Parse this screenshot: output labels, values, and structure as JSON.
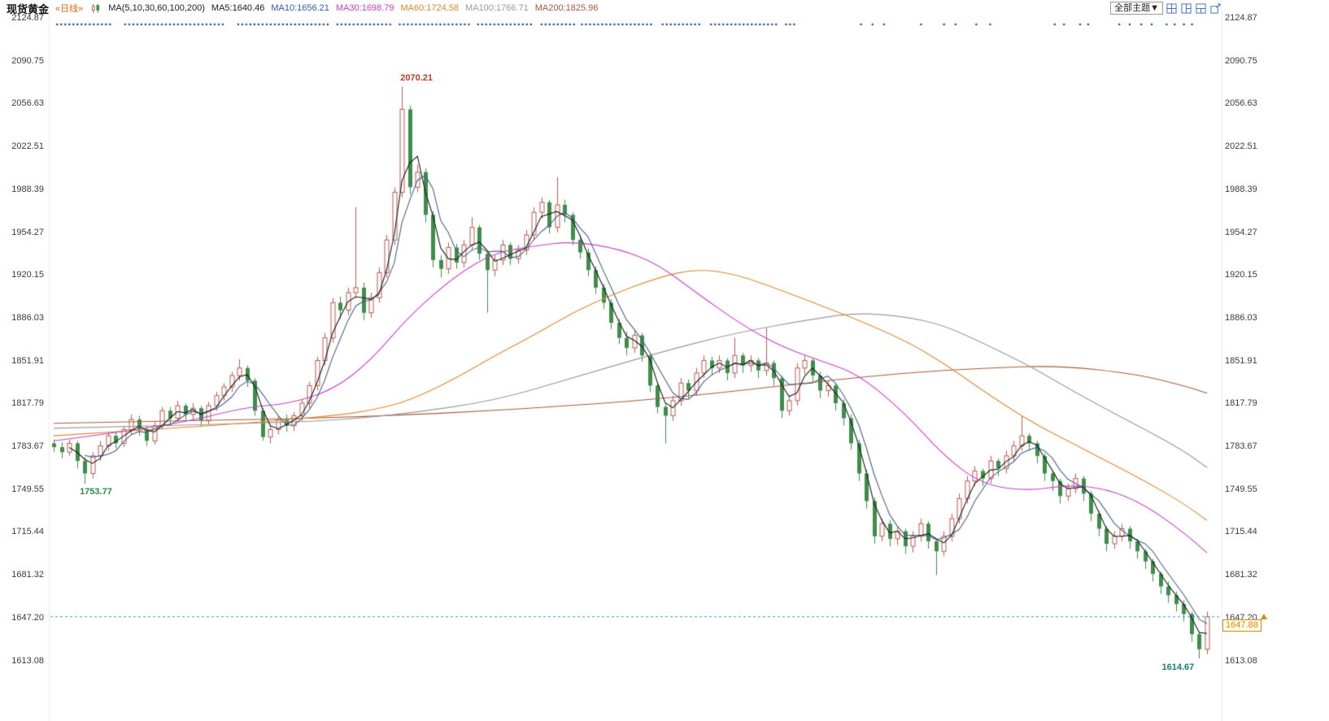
{
  "header": {
    "symbol": "现货黄金",
    "period": "«日线»",
    "ma_group_label": "MA(5,10,30,60,100,200)",
    "ma_readouts": [
      {
        "label": "MA5:1640.46",
        "color": "#1a1a1a"
      },
      {
        "label": "MA10:1656.21",
        "color": "#2f5db3"
      },
      {
        "label": "MA30:1698.79",
        "color": "#cc3ecc"
      },
      {
        "label": "MA60:1724.58",
        "color": "#e0892f"
      },
      {
        "label": "MA100:1766.71",
        "color": "#9a9a9a"
      },
      {
        "label": "MA200:1825.96",
        "color": "#a85a3c"
      }
    ]
  },
  "toolbar": {
    "theme_button": "全部主题▼",
    "icons": [
      "multi-chart-grid",
      "split-columns",
      "split-rows",
      "popout-window"
    ]
  },
  "axis": {
    "ticks": [
      "2124.87",
      "2090.75",
      "2056.63",
      "2022.51",
      "1988.39",
      "1954.27",
      "1920.15",
      "1886.03",
      "1851.91",
      "1817.79",
      "1783.67",
      "1749.55",
      "1715.44",
      "1681.32",
      "1647.20",
      "1613.08"
    ],
    "tick_values": [
      2124.87,
      2090.75,
      2056.63,
      2022.51,
      1988.39,
      1954.27,
      1920.15,
      1886.03,
      1851.91,
      1817.79,
      1783.67,
      1749.55,
      1715.44,
      1681.32,
      1647.2,
      1613.08
    ]
  },
  "price_line": {
    "value": 1647.88,
    "label": "1647.88",
    "color": "#2b9bd7",
    "badge_color": "#e08a00"
  },
  "annotations": [
    {
      "index": 45,
      "price": 2070.21,
      "text": "2070.21",
      "color": "#c0392b",
      "pos": "above-right"
    },
    {
      "index": 4,
      "price": 1753.77,
      "text": "1753.77",
      "color": "#2e8b40",
      "pos": "below-right"
    },
    {
      "index": 148,
      "price": 1614.67,
      "text": "1614.67",
      "color": "#1b7f78",
      "pos": "below-left"
    }
  ],
  "dot_markers": {
    "color": "#1e4f9e",
    "y": 30,
    "segments": [
      [
        0.003,
        0.052
      ],
      [
        0.062,
        0.15
      ],
      [
        0.16,
        0.238
      ],
      [
        0.246,
        0.292
      ],
      [
        0.3,
        0.36
      ],
      [
        0.368,
        0.415
      ],
      [
        0.423,
        0.452
      ],
      [
        0.458,
        0.52
      ],
      [
        0.528,
        0.562
      ],
      [
        0.57,
        0.628
      ],
      [
        0.635,
        0.644
      ]
    ],
    "points": [
      0.7,
      0.71,
      0.72,
      0.752,
      0.772,
      0.782,
      0.8,
      0.812,
      0.868,
      0.876,
      0.89,
      0.897,
      0.924,
      0.933,
      0.943,
      0.952,
      0.965,
      0.972,
      0.98,
      0.987
    ]
  },
  "chart_data": {
    "type": "candlestick",
    "title": "现货黄金 «日线»",
    "xlabel": "",
    "ylabel": "",
    "ylim": [
      1592,
      2139
    ],
    "grid": false,
    "up_color": "#bb5a50",
    "down_color": "#3e8e4a",
    "candles": [
      [
        1786,
        1789,
        1779,
        1783
      ],
      [
        1783,
        1787,
        1774,
        1779
      ],
      [
        1779,
        1789,
        1776,
        1786
      ],
      [
        1786,
        1788,
        1766,
        1772
      ],
      [
        1772,
        1775,
        1753.77,
        1762
      ],
      [
        1762,
        1779,
        1758,
        1776
      ],
      [
        1776,
        1788,
        1772,
        1784
      ],
      [
        1784,
        1795,
        1780,
        1792
      ],
      [
        1792,
        1795,
        1782,
        1786
      ],
      [
        1786,
        1800,
        1783,
        1797
      ],
      [
        1797,
        1809,
        1793,
        1805
      ],
      [
        1805,
        1808,
        1792,
        1797
      ],
      [
        1797,
        1800,
        1784,
        1788
      ],
      [
        1788,
        1803,
        1785,
        1800
      ],
      [
        1800,
        1815,
        1797,
        1812
      ],
      [
        1812,
        1815,
        1801,
        1806
      ],
      [
        1806,
        1820,
        1803,
        1816
      ],
      [
        1816,
        1818,
        1804,
        1809
      ],
      [
        1809,
        1818,
        1805,
        1814
      ],
      [
        1814,
        1816,
        1799,
        1804
      ],
      [
        1804,
        1819,
        1801,
        1816
      ],
      [
        1816,
        1827,
        1812,
        1824
      ],
      [
        1824,
        1834,
        1820,
        1831
      ],
      [
        1831,
        1843,
        1827,
        1840
      ],
      [
        1840,
        1853,
        1836,
        1846
      ],
      [
        1846,
        1848,
        1831,
        1836
      ],
      [
        1836,
        1838,
        1808,
        1812
      ],
      [
        1812,
        1814,
        1788,
        1791
      ],
      [
        1791,
        1800,
        1786,
        1797
      ],
      [
        1797,
        1808,
        1793,
        1805
      ],
      [
        1805,
        1809,
        1795,
        1800
      ],
      [
        1800,
        1811,
        1796,
        1808
      ],
      [
        1808,
        1821,
        1804,
        1818
      ],
      [
        1818,
        1835,
        1814,
        1832
      ],
      [
        1832,
        1855,
        1828,
        1852
      ],
      [
        1852,
        1874,
        1848,
        1870
      ],
      [
        1870,
        1902,
        1866,
        1898
      ],
      [
        1898,
        1903,
        1885,
        1892
      ],
      [
        1892,
        1910,
        1888,
        1906
      ],
      [
        1906,
        1974,
        1902,
        1910
      ],
      [
        1910,
        1914,
        1884,
        1890
      ],
      [
        1890,
        1906,
        1886,
        1902
      ],
      [
        1902,
        1926,
        1898,
        1922
      ],
      [
        1922,
        1952,
        1918,
        1948
      ],
      [
        1948,
        1990,
        1944,
        1986
      ],
      [
        1986,
        2070.21,
        1982,
        2052
      ],
      [
        2052,
        2055,
        1984,
        1990
      ],
      [
        1990,
        2008,
        1986,
        2002
      ],
      [
        2002,
        2005,
        1962,
        1968
      ],
      [
        1968,
        1971,
        1926,
        1932
      ],
      [
        1932,
        1936,
        1918,
        1925
      ],
      [
        1925,
        1946,
        1921,
        1942
      ],
      [
        1942,
        1945,
        1925,
        1930
      ],
      [
        1930,
        1948,
        1926,
        1944
      ],
      [
        1944,
        1966,
        1940,
        1958
      ],
      [
        1958,
        1960,
        1932,
        1937
      ],
      [
        1937,
        1939,
        1890,
        1924
      ],
      [
        1924,
        1936,
        1919,
        1932
      ],
      [
        1932,
        1948,
        1928,
        1944
      ],
      [
        1944,
        1946,
        1928,
        1933
      ],
      [
        1933,
        1944,
        1929,
        1940
      ],
      [
        1940,
        1956,
        1936,
        1952
      ],
      [
        1952,
        1974,
        1948,
        1970
      ],
      [
        1970,
        1982,
        1965,
        1978
      ],
      [
        1978,
        1980,
        1953,
        1958
      ],
      [
        1958,
        1998,
        1954,
        1976
      ],
      [
        1976,
        1980,
        1962,
        1968
      ],
      [
        1968,
        1970,
        1944,
        1948
      ],
      [
        1948,
        1952,
        1933,
        1938
      ],
      [
        1938,
        1941,
        1919,
        1924
      ],
      [
        1924,
        1927,
        1905,
        1910
      ],
      [
        1910,
        1913,
        1893,
        1898
      ],
      [
        1898,
        1901,
        1877,
        1882
      ],
      [
        1882,
        1885,
        1865,
        1870
      ],
      [
        1870,
        1875,
        1856,
        1862
      ],
      [
        1862,
        1876,
        1858,
        1872
      ],
      [
        1872,
        1874,
        1851,
        1856
      ],
      [
        1856,
        1858,
        1827,
        1832
      ],
      [
        1832,
        1834,
        1810,
        1815
      ],
      [
        1815,
        1818,
        1786,
        1808
      ],
      [
        1808,
        1824,
        1804,
        1820
      ],
      [
        1820,
        1838,
        1816,
        1834
      ],
      [
        1834,
        1837,
        1822,
        1828
      ],
      [
        1828,
        1846,
        1824,
        1842
      ],
      [
        1842,
        1856,
        1838,
        1852
      ],
      [
        1852,
        1855,
        1840,
        1846
      ],
      [
        1846,
        1856,
        1842,
        1852
      ],
      [
        1852,
        1854,
        1836,
        1842
      ],
      [
        1842,
        1870,
        1838,
        1856
      ],
      [
        1856,
        1858,
        1842,
        1848
      ],
      [
        1848,
        1856,
        1843,
        1852
      ],
      [
        1852,
        1854,
        1838,
        1844
      ],
      [
        1844,
        1878,
        1840,
        1850
      ],
      [
        1850,
        1852,
        1832,
        1838
      ],
      [
        1838,
        1840,
        1806,
        1812
      ],
      [
        1812,
        1824,
        1808,
        1820
      ],
      [
        1820,
        1850,
        1816,
        1846
      ],
      [
        1846,
        1856,
        1841,
        1852
      ],
      [
        1852,
        1854,
        1835,
        1840
      ],
      [
        1840,
        1843,
        1822,
        1828
      ],
      [
        1828,
        1836,
        1823,
        1832
      ],
      [
        1832,
        1834,
        1812,
        1818
      ],
      [
        1818,
        1821,
        1800,
        1806
      ],
      [
        1806,
        1809,
        1781,
        1786
      ],
      [
        1786,
        1789,
        1756,
        1762
      ],
      [
        1762,
        1765,
        1734,
        1740
      ],
      [
        1740,
        1743,
        1706,
        1712
      ],
      [
        1712,
        1726,
        1708,
        1722
      ],
      [
        1722,
        1725,
        1704,
        1710
      ],
      [
        1710,
        1720,
        1705,
        1716
      ],
      [
        1716,
        1718,
        1698,
        1704
      ],
      [
        1704,
        1716,
        1699,
        1712
      ],
      [
        1712,
        1726,
        1708,
        1722
      ],
      [
        1722,
        1724,
        1702,
        1708
      ],
      [
        1708,
        1710,
        1681,
        1700
      ],
      [
        1700,
        1716,
        1696,
        1712
      ],
      [
        1712,
        1730,
        1708,
        1726
      ],
      [
        1726,
        1746,
        1722,
        1742
      ],
      [
        1742,
        1760,
        1738,
        1756
      ],
      [
        1756,
        1768,
        1752,
        1764
      ],
      [
        1764,
        1766,
        1752,
        1758
      ],
      [
        1758,
        1776,
        1754,
        1772
      ],
      [
        1772,
        1774,
        1760,
        1766
      ],
      [
        1766,
        1780,
        1762,
        1776
      ],
      [
        1776,
        1788,
        1772,
        1784
      ],
      [
        1784,
        1808,
        1780,
        1792
      ],
      [
        1792,
        1794,
        1780,
        1786
      ],
      [
        1786,
        1788,
        1770,
        1776
      ],
      [
        1776,
        1778,
        1756,
        1762
      ],
      [
        1762,
        1764,
        1748,
        1756
      ],
      [
        1756,
        1758,
        1738,
        1744
      ],
      [
        1744,
        1754,
        1740,
        1750
      ],
      [
        1750,
        1762,
        1746,
        1758
      ],
      [
        1758,
        1760,
        1740,
        1746
      ],
      [
        1746,
        1748,
        1724,
        1730
      ],
      [
        1730,
        1732,
        1712,
        1718
      ],
      [
        1718,
        1720,
        1700,
        1706
      ],
      [
        1706,
        1716,
        1702,
        1712
      ],
      [
        1712,
        1722,
        1708,
        1718
      ],
      [
        1718,
        1720,
        1702,
        1708
      ],
      [
        1708,
        1710,
        1694,
        1700
      ],
      [
        1700,
        1702,
        1686,
        1692
      ],
      [
        1692,
        1694,
        1676,
        1682
      ],
      [
        1682,
        1684,
        1666,
        1672
      ],
      [
        1672,
        1676,
        1659,
        1665
      ],
      [
        1665,
        1668,
        1652,
        1658
      ],
      [
        1658,
        1661,
        1644,
        1650
      ],
      [
        1650,
        1652,
        1628,
        1634
      ],
      [
        1634,
        1636,
        1614.67,
        1622
      ],
      [
        1622,
        1652,
        1618,
        1647.88
      ]
    ],
    "ma_series": [
      {
        "name": "MA5",
        "color": "#1a1a1a",
        "window": 3
      },
      {
        "name": "MA10",
        "color": "#46628f",
        "window": 5
      },
      {
        "name": "MA30",
        "color": "#cc3ecc",
        "anchors": [
          [
            0,
            1788
          ],
          [
            15,
            1800
          ],
          [
            25,
            1815
          ],
          [
            30,
            1817
          ],
          [
            36,
            1828
          ],
          [
            41,
            1852
          ],
          [
            46,
            1888
          ],
          [
            52,
            1920
          ],
          [
            57,
            1938
          ],
          [
            62,
            1943
          ],
          [
            67,
            1947
          ],
          [
            73,
            1941
          ],
          [
            78,
            1929
          ],
          [
            83,
            1906
          ],
          [
            89,
            1880
          ],
          [
            94,
            1863
          ],
          [
            99,
            1852
          ],
          [
            104,
            1841
          ],
          [
            110,
            1810
          ],
          [
            115,
            1776
          ],
          [
            120,
            1753
          ],
          [
            126,
            1748
          ],
          [
            131,
            1753
          ],
          [
            136,
            1750
          ],
          [
            141,
            1737
          ],
          [
            146,
            1715
          ],
          [
            149,
            1698.79
          ]
        ]
      },
      {
        "name": "MA60",
        "color": "#e0892f",
        "anchors": [
          [
            0,
            1792
          ],
          [
            15,
            1798
          ],
          [
            25,
            1802
          ],
          [
            36,
            1808
          ],
          [
            41,
            1812
          ],
          [
            46,
            1820
          ],
          [
            52,
            1838
          ],
          [
            57,
            1856
          ],
          [
            62,
            1872
          ],
          [
            67,
            1890
          ],
          [
            72,
            1904
          ],
          [
            78,
            1918
          ],
          [
            83,
            1925
          ],
          [
            88,
            1921
          ],
          [
            94,
            1908
          ],
          [
            99,
            1896
          ],
          [
            104,
            1884
          ],
          [
            110,
            1868
          ],
          [
            115,
            1850
          ],
          [
            120,
            1828
          ],
          [
            126,
            1804
          ],
          [
            131,
            1788
          ],
          [
            136,
            1772
          ],
          [
            141,
            1756
          ],
          [
            146,
            1738
          ],
          [
            149,
            1724.58
          ]
        ]
      },
      {
        "name": "MA100",
        "color": "#9a9a9a",
        "anchors": [
          [
            0,
            1798
          ],
          [
            15,
            1800
          ],
          [
            25,
            1802
          ],
          [
            36,
            1804
          ],
          [
            46,
            1810
          ],
          [
            57,
            1820
          ],
          [
            67,
            1838
          ],
          [
            78,
            1858
          ],
          [
            88,
            1874
          ],
          [
            99,
            1886
          ],
          [
            104,
            1890
          ],
          [
            110,
            1887
          ],
          [
            115,
            1880
          ],
          [
            120,
            1866
          ],
          [
            126,
            1848
          ],
          [
            131,
            1830
          ],
          [
            136,
            1813
          ],
          [
            141,
            1797
          ],
          [
            146,
            1780
          ],
          [
            149,
            1766.71
          ]
        ]
      },
      {
        "name": "MA200",
        "color": "#a85a3c",
        "anchors": [
          [
            0,
            1802
          ],
          [
            20,
            1804
          ],
          [
            40,
            1807
          ],
          [
            60,
            1813
          ],
          [
            80,
            1822
          ],
          [
            100,
            1836
          ],
          [
            110,
            1842
          ],
          [
            120,
            1846
          ],
          [
            130,
            1848
          ],
          [
            140,
            1841
          ],
          [
            146,
            1832
          ],
          [
            149,
            1825.96
          ]
        ]
      }
    ]
  }
}
